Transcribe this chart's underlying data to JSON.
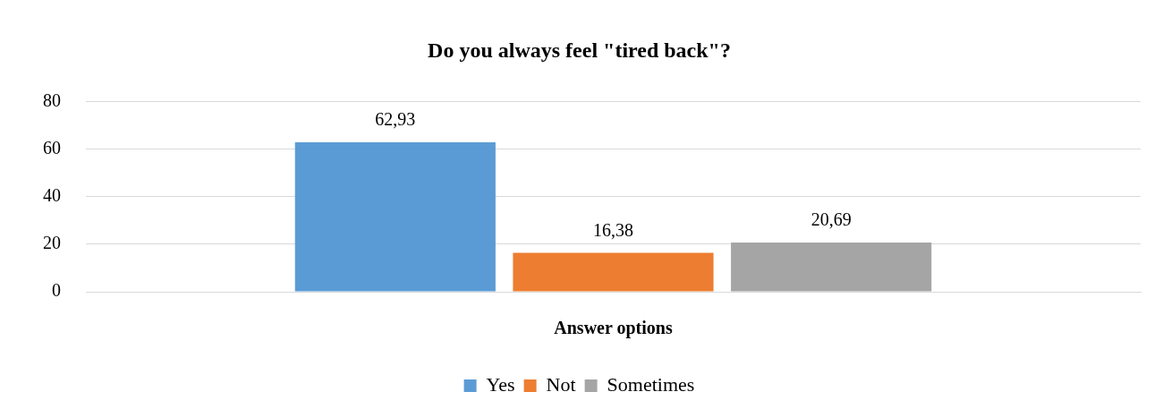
{
  "chart_data": {
    "type": "bar",
    "title": "Do you always feel \"tired back\"?",
    "xlabel": "Answer options",
    "categories": [
      null
    ],
    "series": [
      {
        "name": "Yes",
        "color": "#5b9bd5",
        "values": [
          62.93
        ],
        "value_labels": [
          "62,93"
        ]
      },
      {
        "name": "Not",
        "color": "#ed7d31",
        "values": [
          16.38
        ],
        "value_labels": [
          "16,38"
        ]
      },
      {
        "name": "Sometimes",
        "color": "#a5a5a5",
        "values": [
          20.69
        ],
        "value_labels": [
          "20,69"
        ]
      }
    ],
    "ylim": [
      0,
      80
    ],
    "yticks": [
      0,
      20,
      40,
      60,
      80
    ],
    "grid": "y",
    "legend": "bottom"
  }
}
